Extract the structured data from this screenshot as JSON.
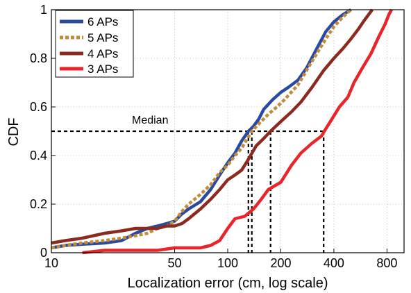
{
  "chart_data": {
    "type": "line",
    "xlabel": "Localization error (cm, log scale)",
    "ylabel": "CDF",
    "x_scale": "log",
    "xlim": [
      10,
      1000
    ],
    "ylim": [
      0,
      1
    ],
    "x_ticks": [
      10,
      50,
      100,
      200,
      400,
      800
    ],
    "y_ticks": [
      0,
      0.2,
      0.4,
      0.6,
      0.8,
      1
    ],
    "grid": true,
    "legend_position": "top-left",
    "annotation": {
      "text": "Median",
      "y": 0.5
    },
    "series": [
      {
        "name": "6 APs",
        "color": "#2b4a9f",
        "style": "solid",
        "median_x": 131,
        "points": [
          [
            10,
            0.02
          ],
          [
            12,
            0.03
          ],
          [
            15,
            0.035
          ],
          [
            20,
            0.04
          ],
          [
            25,
            0.05
          ],
          [
            30,
            0.08
          ],
          [
            35,
            0.1
          ],
          [
            40,
            0.11
          ],
          [
            45,
            0.12
          ],
          [
            50,
            0.13
          ],
          [
            55,
            0.16
          ],
          [
            60,
            0.18
          ],
          [
            70,
            0.21
          ],
          [
            80,
            0.26
          ],
          [
            90,
            0.32
          ],
          [
            100,
            0.37
          ],
          [
            110,
            0.41
          ],
          [
            120,
            0.46
          ],
          [
            131,
            0.5
          ],
          [
            140,
            0.52
          ],
          [
            150,
            0.55
          ],
          [
            160,
            0.59
          ],
          [
            180,
            0.63
          ],
          [
            200,
            0.66
          ],
          [
            220,
            0.68
          ],
          [
            250,
            0.71
          ],
          [
            280,
            0.76
          ],
          [
            320,
            0.84
          ],
          [
            360,
            0.91
          ],
          [
            400,
            0.95
          ],
          [
            450,
            0.98
          ],
          [
            500,
            1.0
          ]
        ]
      },
      {
        "name": "5 APs",
        "color": "#c08c3c",
        "style": "dotted",
        "median_x": 137,
        "points": [
          [
            10,
            0.02
          ],
          [
            12,
            0.03
          ],
          [
            15,
            0.04
          ],
          [
            20,
            0.05
          ],
          [
            25,
            0.06
          ],
          [
            30,
            0.07
          ],
          [
            35,
            0.08
          ],
          [
            40,
            0.1
          ],
          [
            45,
            0.11
          ],
          [
            50,
            0.13
          ],
          [
            55,
            0.17
          ],
          [
            60,
            0.2
          ],
          [
            70,
            0.24
          ],
          [
            80,
            0.28
          ],
          [
            90,
            0.33
          ],
          [
            100,
            0.36
          ],
          [
            110,
            0.4
          ],
          [
            120,
            0.43
          ],
          [
            137,
            0.5
          ],
          [
            150,
            0.53
          ],
          [
            170,
            0.57
          ],
          [
            190,
            0.6
          ],
          [
            210,
            0.63
          ],
          [
            250,
            0.69
          ],
          [
            280,
            0.75
          ],
          [
            320,
            0.82
          ],
          [
            360,
            0.88
          ],
          [
            400,
            0.93
          ],
          [
            450,
            0.97
          ],
          [
            500,
            1.0
          ]
        ]
      },
      {
        "name": "4 APs",
        "color": "#8b2a1e",
        "style": "solid",
        "median_x": 175,
        "points": [
          [
            10,
            0.04
          ],
          [
            12,
            0.05
          ],
          [
            15,
            0.06
          ],
          [
            20,
            0.08
          ],
          [
            25,
            0.09
          ],
          [
            30,
            0.1
          ],
          [
            35,
            0.1
          ],
          [
            40,
            0.1
          ],
          [
            45,
            0.11
          ],
          [
            50,
            0.11
          ],
          [
            55,
            0.12
          ],
          [
            60,
            0.14
          ],
          [
            70,
            0.18
          ],
          [
            80,
            0.22
          ],
          [
            90,
            0.26
          ],
          [
            100,
            0.3
          ],
          [
            110,
            0.32
          ],
          [
            120,
            0.34
          ],
          [
            130,
            0.38
          ],
          [
            145,
            0.44
          ],
          [
            160,
            0.47
          ],
          [
            175,
            0.5
          ],
          [
            200,
            0.54
          ],
          [
            230,
            0.58
          ],
          [
            260,
            0.62
          ],
          [
            300,
            0.68
          ],
          [
            350,
            0.75
          ],
          [
            400,
            0.8
          ],
          [
            450,
            0.84
          ],
          [
            500,
            0.88
          ],
          [
            550,
            0.92
          ],
          [
            600,
            0.96
          ],
          [
            660,
            1.0
          ]
        ]
      },
      {
        "name": "3 APs",
        "color": "#e8252a",
        "style": "solid",
        "median_x": 350,
        "points": [
          [
            15,
            0.0
          ],
          [
            20,
            0.01
          ],
          [
            30,
            0.01
          ],
          [
            40,
            0.01
          ],
          [
            50,
            0.02
          ],
          [
            60,
            0.02
          ],
          [
            70,
            0.02
          ],
          [
            80,
            0.03
          ],
          [
            90,
            0.05
          ],
          [
            100,
            0.1
          ],
          [
            110,
            0.14
          ],
          [
            125,
            0.15
          ],
          [
            140,
            0.18
          ],
          [
            155,
            0.22
          ],
          [
            170,
            0.26
          ],
          [
            200,
            0.29
          ],
          [
            230,
            0.36
          ],
          [
            260,
            0.41
          ],
          [
            300,
            0.45
          ],
          [
            340,
            0.48
          ],
          [
            360,
            0.51
          ],
          [
            390,
            0.55
          ],
          [
            430,
            0.6
          ],
          [
            480,
            0.64
          ],
          [
            520,
            0.7
          ],
          [
            580,
            0.76
          ],
          [
            650,
            0.82
          ],
          [
            720,
            0.89
          ],
          [
            780,
            0.94
          ],
          [
            820,
            0.98
          ],
          [
            850,
            1.0
          ]
        ]
      }
    ]
  }
}
